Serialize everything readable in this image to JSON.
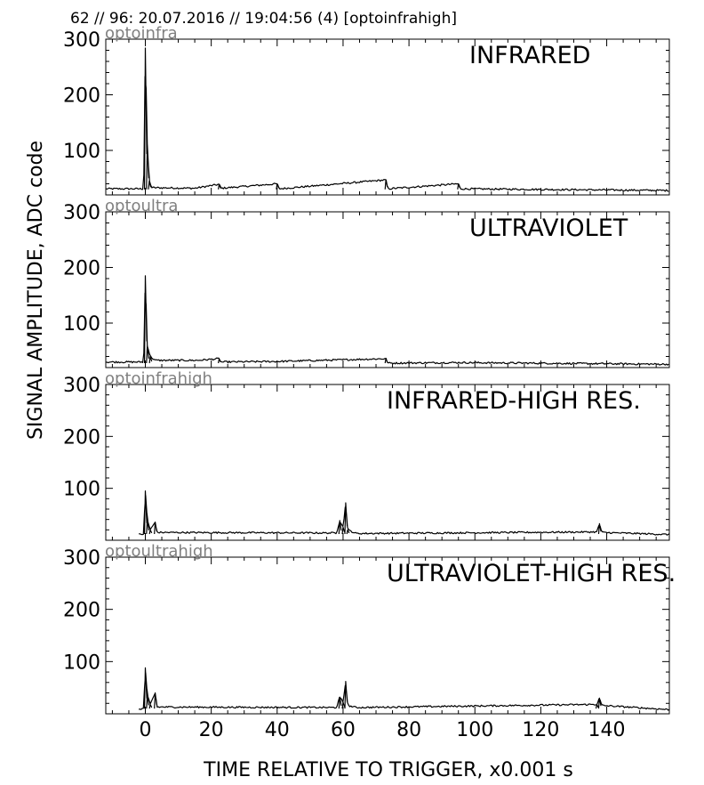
{
  "header": "62 // 96:   20.07.2016 // 19:04:56 (4)  [optoinfrahigh]",
  "ylabel": "SIGNAL AMPLITUDE,  ADC code",
  "xlabel": "TIME RELATIVE TO TRIGGER,   x0.001 s",
  "chart_data": [
    {
      "type": "line",
      "channel": "optoinfra",
      "title": "INFRARED",
      "xlim": [
        -12,
        159
      ],
      "ylim": [
        20,
        300
      ],
      "x_ticks": [
        0,
        20,
        40,
        60,
        80,
        100,
        120,
        140
      ],
      "y_ticks": [
        100,
        200,
        300
      ],
      "baseline": 30,
      "end_value": 28,
      "series": [
        {
          "points": [
            [
              -12,
              31
            ],
            [
              -0.5,
              31
            ],
            [
              0,
              284
            ],
            [
              0.6,
              110
            ],
            [
              1.2,
              45
            ],
            [
              2,
              33
            ],
            [
              15,
              32
            ],
            [
              22.4,
              39
            ],
            [
              23,
              32
            ],
            [
              40,
              40
            ],
            [
              40.6,
              31
            ],
            [
              73,
              47
            ],
            [
              73.6,
              31
            ],
            [
              95,
              40
            ],
            [
              95.6,
              31
            ],
            [
              159,
              28
            ]
          ]
        }
      ]
    },
    {
      "type": "line",
      "channel": "optoultra",
      "title": "ULTRAVIOLET",
      "xlim": [
        -12,
        159
      ],
      "ylim": [
        20,
        300
      ],
      "x_ticks": [
        0,
        20,
        40,
        60,
        80,
        100,
        120,
        140
      ],
      "y_ticks": [
        100,
        200,
        300
      ],
      "baseline": 28,
      "end_value": 26,
      "series": [
        {
          "points": [
            [
              -12,
              30
            ],
            [
              -0.5,
              30
            ],
            [
              0,
              185
            ],
            [
              0.6,
              60
            ],
            [
              1.5,
              40
            ],
            [
              3,
              33
            ],
            [
              16,
              33
            ],
            [
              22.4,
              36
            ],
            [
              23,
              30
            ],
            [
              40,
              31
            ],
            [
              73,
              36
            ],
            [
              73.6,
              28
            ],
            [
              95,
              29
            ],
            [
              159,
              26
            ]
          ]
        }
      ]
    },
    {
      "type": "line",
      "channel": "optoinfrahigh",
      "title": "INFRARED-HIGH RES.",
      "xlim": [
        -12,
        159
      ],
      "ylim": [
        0,
        300
      ],
      "x_ticks": [
        0,
        20,
        40,
        60,
        80,
        100,
        120,
        140
      ],
      "y_ticks": [
        100,
        200,
        300
      ],
      "baseline": 12,
      "end_value": 11,
      "series": [
        {
          "points": [
            [
              -2,
              11
            ],
            [
              -0.5,
              12
            ],
            [
              0,
              95
            ],
            [
              0.6,
              40
            ],
            [
              1.5,
              20
            ],
            [
              3,
              35
            ],
            [
              3.6,
              15
            ],
            [
              58,
              14
            ],
            [
              59,
              38
            ],
            [
              60,
              25
            ],
            [
              60.8,
              72
            ],
            [
              61.4,
              20
            ],
            [
              64,
              13
            ],
            [
              137,
              16
            ],
            [
              137.8,
              32
            ],
            [
              138.5,
              15
            ],
            [
              159,
              11
            ]
          ]
        }
      ]
    },
    {
      "type": "line",
      "channel": "optoultrahigh",
      "title": "ULTRAVIOLET-HIGH RES.",
      "xlim": [
        -12,
        159
      ],
      "ylim": [
        0,
        300
      ],
      "x_ticks": [
        0,
        20,
        40,
        60,
        80,
        100,
        120,
        140
      ],
      "y_ticks": [
        100,
        200,
        300
      ],
      "baseline": 10,
      "end_value": 8,
      "series": [
        {
          "points": [
            [
              -2,
              9
            ],
            [
              -0.5,
              10
            ],
            [
              0,
              88
            ],
            [
              0.6,
              35
            ],
            [
              1.5,
              18
            ],
            [
              3,
              40
            ],
            [
              3.6,
              13
            ],
            [
              58,
              12
            ],
            [
              59,
              32
            ],
            [
              60,
              22
            ],
            [
              60.8,
              62
            ],
            [
              61.4,
              16
            ],
            [
              64,
              12
            ],
            [
              137,
              18
            ],
            [
              137.8,
              30
            ],
            [
              138.5,
              16
            ],
            [
              159,
              8
            ]
          ]
        }
      ]
    }
  ]
}
